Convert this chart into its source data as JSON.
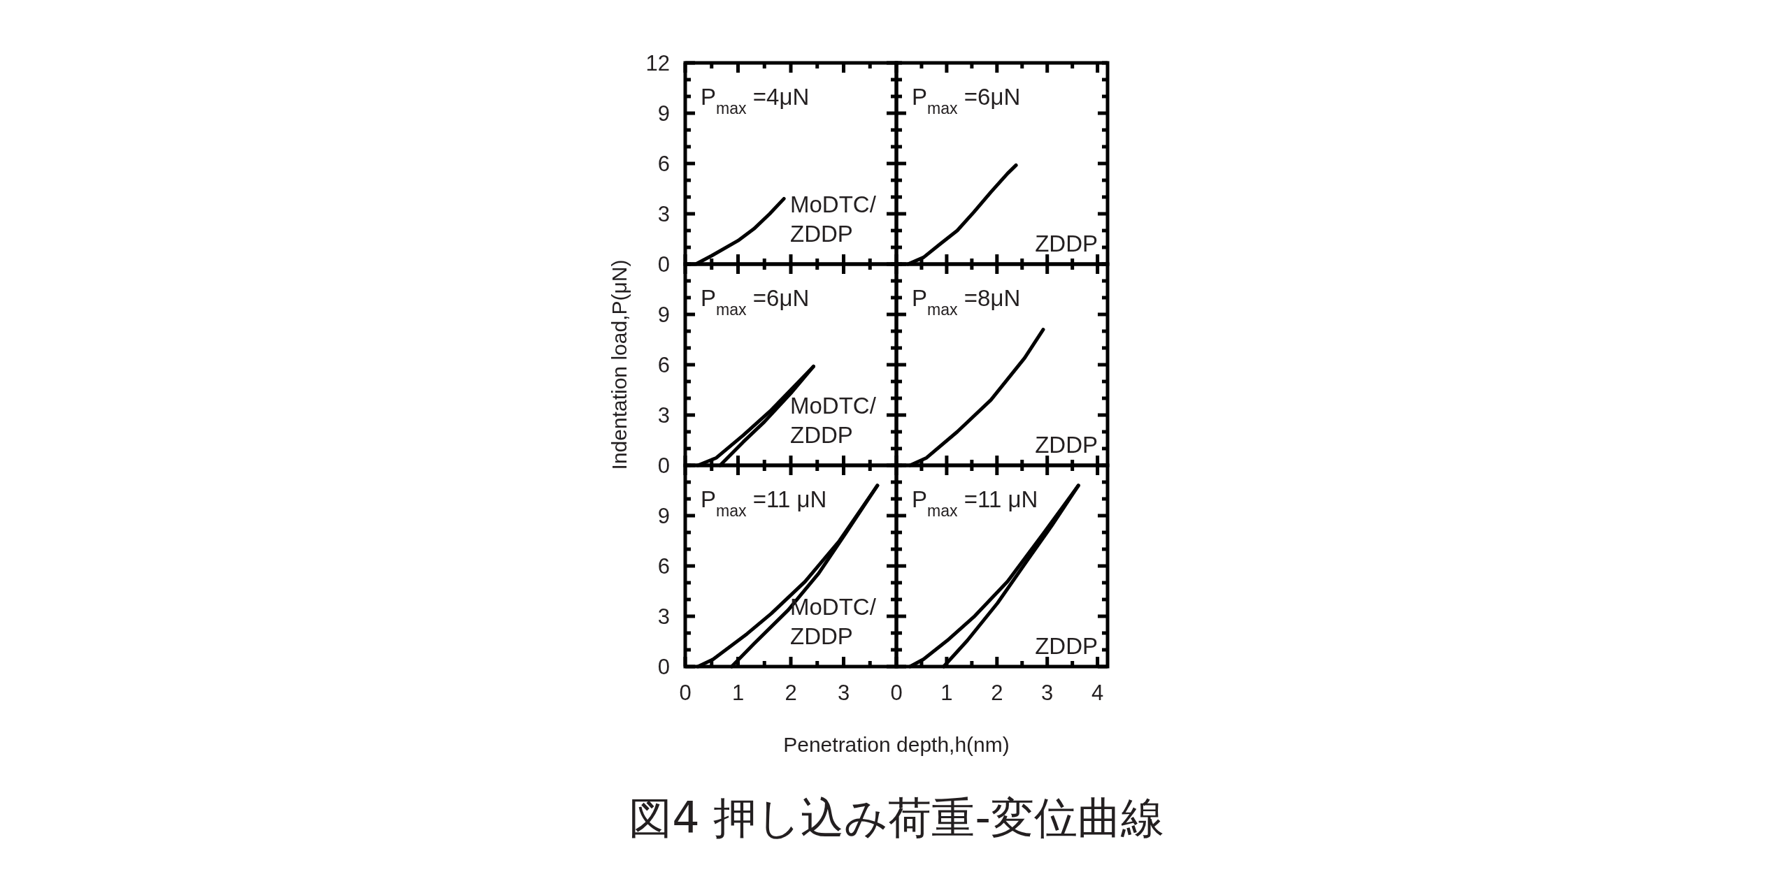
{
  "chart_data": [
    {
      "type": "line",
      "title": "図4 押し込み荷重-変位曲線",
      "annotations": [
        "P$_{max}$ =4μN",
        "MoDTC/ZDDP"
      ],
      "xlim": [
        0,
        4
      ],
      "ylim": [
        0,
        12
      ],
      "xticks": [
        0,
        1,
        2,
        3,
        {
          "value": 0.5,
          "label": null
        },
        {
          "value": 1.5,
          "label": null
        },
        {
          "value": 2.5,
          "label": null
        },
        {
          "value": 3.5,
          "label": null
        }
      ],
      "yticks": [
        0,
        3,
        6,
        9,
        12,
        {
          "value": 1,
          "label": null
        },
        {
          "value": 2,
          "label": null
        },
        {
          "value": 4,
          "label": null
        },
        {
          "value": 5,
          "label": null
        },
        {
          "value": 7,
          "label": null
        },
        {
          "value": 8,
          "label": null
        },
        {
          "value": 10,
          "label": null
        },
        {
          "value": 11,
          "label": null
        }
      ],
      "tick_labels": "y",
      "marker": "none",
      "line_style": "solid",
      "series": [
        {
          "color": "#000000",
          "x": [
            0.2,
            0.5,
            1.0,
            1.3,
            1.6,
            1.87
          ],
          "values": [
            0,
            0.5,
            1.4,
            2.1,
            3.0,
            3.9
          ]
        }
      ]
    },
    {
      "type": "line",
      "annotations": [
        "P$_{max}$ =6μN",
        "ZDDP"
      ],
      "xlim": [
        0,
        4.2
      ],
      "ylim": [
        0,
        12
      ],
      "xticks": [
        0,
        1,
        2,
        3,
        4,
        {
          "value": 0.5,
          "label": null
        },
        {
          "value": 1.5,
          "label": null
        },
        {
          "value": 2.5,
          "label": null
        },
        {
          "value": 3.5,
          "label": null
        }
      ],
      "yticks": [
        0,
        3,
        6,
        9,
        {
          "value": 12,
          "label": null
        },
        {
          "value": 1,
          "label": null
        },
        {
          "value": 2,
          "label": null
        },
        {
          "value": 4,
          "label": null
        },
        {
          "value": 5,
          "label": null
        },
        {
          "value": 7,
          "label": null
        },
        {
          "value": 8,
          "label": null
        },
        {
          "value": 10,
          "label": null
        },
        {
          "value": 11,
          "label": null
        }
      ],
      "tick_labels": false,
      "marker": "none",
      "line_style": "solid",
      "series": [
        {
          "color": "#000000",
          "x": [
            0.23,
            0.54,
            0.87,
            1.21,
            1.54,
            1.88,
            2.21,
            2.38
          ],
          "values": [
            0,
            0.4,
            1.2,
            2.0,
            3.1,
            4.3,
            5.4,
            5.9
          ]
        }
      ]
    },
    {
      "type": "line",
      "ylabel": "Indentation load,P(μN)",
      "annotations": [
        "P$_{max}$ =6μN",
        "MoDTC/ZDDP"
      ],
      "xlim": [
        0,
        4
      ],
      "ylim": [
        0,
        12
      ],
      "xticks": [
        0,
        1,
        2,
        3,
        {
          "value": 0.5,
          "label": null
        },
        {
          "value": 1.5,
          "label": null
        },
        {
          "value": 2.5,
          "label": null
        },
        {
          "value": 3.5,
          "label": null
        }
      ],
      "yticks": [
        0,
        3,
        6,
        9,
        {
          "value": 12,
          "label": null
        },
        {
          "value": 1,
          "label": null
        },
        {
          "value": 2,
          "label": null
        },
        {
          "value": 4,
          "label": null
        },
        {
          "value": 5,
          "label": null
        },
        {
          "value": 7,
          "label": null
        },
        {
          "value": 8,
          "label": null
        },
        {
          "value": 10,
          "label": null
        },
        {
          "value": 11,
          "label": null
        }
      ],
      "tick_labels": "y",
      "marker": "none",
      "line_style": "solid",
      "series": [
        {
          "color": "#000000",
          "x": [
            0.24,
            0.59,
            1.1,
            1.63,
            2.0,
            2.43
          ],
          "values": [
            0,
            0.45,
            1.8,
            3.3,
            4.5,
            5.9
          ]
        },
        {
          "color": "#000000",
          "x": [
            0.66,
            1.1,
            1.5,
            2.0,
            2.43
          ],
          "values": [
            0,
            1.4,
            2.6,
            4.3,
            5.9
          ]
        }
      ]
    },
    {
      "type": "line",
      "annotations": [
        "P$_{max}$ =8μN",
        "ZDDP"
      ],
      "xlim": [
        0,
        4.2
      ],
      "ylim": [
        0,
        12
      ],
      "xticks": [
        0,
        1,
        2,
        3,
        4,
        {
          "value": 0.5,
          "label": null
        },
        {
          "value": 1.5,
          "label": null
        },
        {
          "value": 2.5,
          "label": null
        },
        {
          "value": 3.5,
          "label": null
        }
      ],
      "yticks": [
        0,
        3,
        6,
        9,
        {
          "value": 12,
          "label": null
        },
        {
          "value": 1,
          "label": null
        },
        {
          "value": 2,
          "label": null
        },
        {
          "value": 4,
          "label": null
        },
        {
          "value": 5,
          "label": null
        },
        {
          "value": 7,
          "label": null
        },
        {
          "value": 8,
          "label": null
        },
        {
          "value": 10,
          "label": null
        },
        {
          "value": 11,
          "label": null
        }
      ],
      "tick_labels": false,
      "marker": "none",
      "line_style": "solid",
      "series": [
        {
          "color": "#000000",
          "x": [
            0.27,
            0.6,
            1.21,
            1.88,
            2.55,
            2.92
          ],
          "values": [
            0,
            0.45,
            2.0,
            3.9,
            6.4,
            8.1
          ]
        }
      ]
    },
    {
      "type": "line",
      "xlabel": "Penetration depth,h(nm)",
      "annotations": [
        "P$_{max}$ =11 μN",
        "MoDTC/ZDDP"
      ],
      "xlim": [
        0,
        4
      ],
      "ylim": [
        0,
        12
      ],
      "xticks": [
        0,
        1,
        2,
        3,
        {
          "value": 0.5,
          "label": null
        },
        {
          "value": 1.5,
          "label": null
        },
        {
          "value": 2.5,
          "label": null
        },
        {
          "value": 3.5,
          "label": null
        }
      ],
      "yticks": [
        0,
        3,
        6,
        9,
        {
          "value": 12,
          "label": null
        },
        {
          "value": 1,
          "label": null
        },
        {
          "value": 2,
          "label": null
        },
        {
          "value": 4,
          "label": null
        },
        {
          "value": 5,
          "label": null
        },
        {
          "value": 7,
          "label": null
        },
        {
          "value": 8,
          "label": null
        },
        {
          "value": 10,
          "label": null
        },
        {
          "value": 11,
          "label": null
        }
      ],
      "marker": "none",
      "line_style": "solid",
      "series": [
        {
          "color": "#000000",
          "x": [
            0.24,
            0.53,
            1.17,
            1.63,
            2.27,
            2.92,
            3.64
          ],
          "values": [
            0,
            0.44,
            1.95,
            3.16,
            5.07,
            7.5,
            10.8
          ]
        },
        {
          "color": "#000000",
          "x": [
            0.88,
            1.3,
            1.95,
            2.53,
            3.05,
            3.64
          ],
          "values": [
            0,
            1.35,
            3.37,
            5.57,
            8.0,
            10.8
          ]
        }
      ]
    },
    {
      "type": "line",
      "annotations": [
        "P$_{max}$ =11 μN",
        "ZDDP"
      ],
      "xlim": [
        0,
        4.2
      ],
      "ylim": [
        0,
        12
      ],
      "xticks": [
        0,
        1,
        2,
        3,
        4,
        {
          "value": 0.5,
          "label": null
        },
        {
          "value": 1.5,
          "label": null
        },
        {
          "value": 2.5,
          "label": null
        },
        {
          "value": 3.5,
          "label": null
        }
      ],
      "yticks": [
        0,
        3,
        6,
        9,
        {
          "value": 12,
          "label": null
        },
        {
          "value": 1,
          "label": null
        },
        {
          "value": 2,
          "label": null
        },
        {
          "value": 4,
          "label": null
        },
        {
          "value": 5,
          "label": null
        },
        {
          "value": 7,
          "label": null
        },
        {
          "value": 8,
          "label": null
        },
        {
          "value": 10,
          "label": null
        },
        {
          "value": 11,
          "label": null
        }
      ],
      "tick_labels": "x",
      "marker": "none",
      "line_style": "solid",
      "series": [
        {
          "color": "#000000",
          "x": [
            0.27,
            0.54,
            1.01,
            1.54,
            2.21,
            2.89,
            3.62
          ],
          "values": [
            0,
            0.44,
            1.55,
            2.96,
            5.07,
            7.8,
            10.8
          ]
        },
        {
          "color": "#000000",
          "x": [
            0.94,
            1.41,
            2.01,
            2.62,
            3.09,
            3.62
          ],
          "values": [
            0,
            1.55,
            3.78,
            6.4,
            8.4,
            10.8
          ]
        }
      ]
    }
  ]
}
